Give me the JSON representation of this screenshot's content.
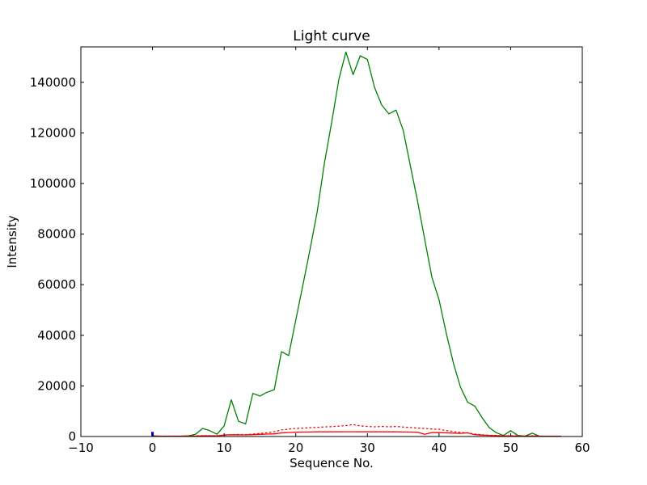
{
  "chart_data": {
    "type": "line",
    "title": "Light curve",
    "xlabel": "Sequence No.",
    "ylabel": "Intensity",
    "xlim": [
      -10,
      60
    ],
    "ylim": [
      0,
      154000
    ],
    "xticks": [
      -10,
      0,
      10,
      20,
      30,
      40,
      50,
      60
    ],
    "yticks": [
      0,
      20000,
      40000,
      60000,
      80000,
      100000,
      120000,
      140000
    ],
    "grid": false,
    "legend": "none",
    "frame_color": "#000000",
    "background_color": "#ffffff",
    "x": [
      0,
      1,
      2,
      3,
      4,
      5,
      6,
      7,
      8,
      9,
      10,
      11,
      12,
      13,
      14,
      15,
      16,
      17,
      18,
      19,
      20,
      21,
      22,
      23,
      24,
      25,
      26,
      27,
      28,
      29,
      30,
      31,
      32,
      33,
      34,
      35,
      36,
      37,
      38,
      39,
      40,
      41,
      42,
      43,
      44,
      45,
      46,
      47,
      48,
      49,
      50,
      51,
      52,
      53,
      54,
      55,
      56,
      57
    ],
    "series": [
      {
        "name": "green-solid-line",
        "color": "#008000",
        "style": "solid",
        "values": [
          300,
          150,
          100,
          100,
          150,
          300,
          900,
          3200,
          2300,
          900,
          4200,
          14500,
          6000,
          5000,
          17000,
          16000,
          17500,
          18500,
          33500,
          32000,
          46000,
          60000,
          74000,
          89000,
          108000,
          124000,
          141000,
          152000,
          143000,
          150500,
          149000,
          138000,
          131000,
          127500,
          129000,
          121000,
          107000,
          93000,
          78000,
          63000,
          54000,
          41000,
          29000,
          19500,
          13500,
          12000,
          7500,
          3500,
          1500,
          400,
          2300,
          400,
          150,
          1300,
          150,
          80,
          80,
          80
        ]
      },
      {
        "name": "red-dotted-line",
        "color": "#ff0000",
        "style": "dotted",
        "values": [
          150,
          150,
          150,
          150,
          150,
          200,
          250,
          350,
          350,
          300,
          500,
          700,
          800,
          700,
          950,
          1200,
          1500,
          1900,
          2600,
          2900,
          3200,
          3300,
          3500,
          3600,
          3800,
          3900,
          4100,
          4300,
          4700,
          4200,
          3950,
          3850,
          3950,
          3850,
          3950,
          3750,
          3550,
          3350,
          3150,
          2950,
          2850,
          2350,
          1950,
          1550,
          1450,
          950,
          700,
          500,
          400,
          250,
          350,
          200,
          120,
          250,
          120,
          80,
          80,
          80
        ]
      },
      {
        "name": "red-solid-line",
        "color": "#ff0000",
        "style": "solid",
        "values": [
          100,
          100,
          100,
          100,
          100,
          120,
          150,
          250,
          250,
          250,
          600,
          700,
          650,
          650,
          750,
          850,
          950,
          1050,
          1400,
          1550,
          1700,
          1750,
          1800,
          1850,
          1850,
          1850,
          1850,
          1900,
          1900,
          1850,
          1850,
          1850,
          1850,
          1850,
          1850,
          1800,
          1750,
          1650,
          900,
          1550,
          1500,
          1450,
          1350,
          1250,
          1450,
          750,
          550,
          450,
          350,
          180,
          280,
          120,
          100,
          180,
          100,
          60,
          60,
          60
        ]
      },
      {
        "name": "blue-marker",
        "color": "#0000ff",
        "style": "marker",
        "points": [
          [
            0,
            900
          ]
        ]
      }
    ]
  }
}
